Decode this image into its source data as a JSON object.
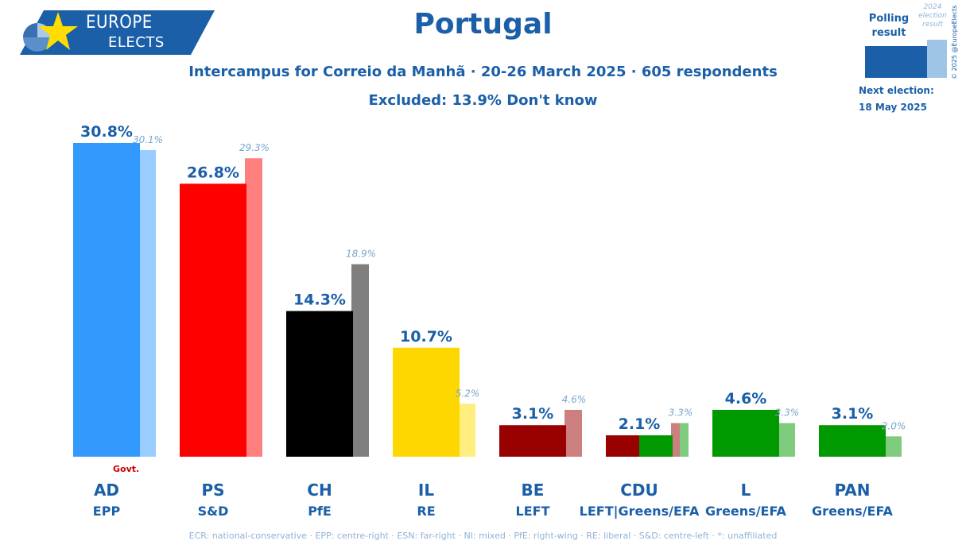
{
  "logo": {
    "line1": "EUROPE",
    "line2": "ELECTS"
  },
  "header": {
    "title": "Portugal",
    "subtitle": "Intercampus for Correio da Manhã · 20-26 March 2025 · 605 respondents",
    "excluded": "Excluded: 13.9% Don't know"
  },
  "legend": {
    "polling_result": "Polling result",
    "election_result": "2024 election result",
    "copyright": "© 2025 @EuropeElects",
    "next_election_label": "Next election:",
    "next_election_date": "18 May 2025",
    "poll_color": "#1a5fa8",
    "election_color": "#9ec5e6"
  },
  "chart_data": {
    "type": "bar",
    "categories": [
      "AD",
      "PS",
      "CH",
      "IL",
      "BE",
      "CDU",
      "L",
      "PAN"
    ],
    "groups": [
      "EPP",
      "S&D",
      "PfE",
      "RE",
      "LEFT",
      "LEFT|Greens/EFA",
      "Greens/EFA",
      "Greens/EFA"
    ],
    "series": [
      {
        "name": "Polling result",
        "values": [
          30.8,
          26.8,
          14.3,
          10.7,
          3.1,
          2.1,
          4.6,
          3.1
        ]
      },
      {
        "name": "2024 election result",
        "values": [
          30.1,
          29.3,
          18.9,
          5.2,
          4.6,
          3.3,
          3.3,
          2.0
        ]
      }
    ],
    "poll_labels": [
      "30.8%",
      "26.8%",
      "14.3%",
      "10.7%",
      "3.1%",
      "2.1%",
      "4.6%",
      "3.1%"
    ],
    "election_labels": [
      "30.1%",
      "29.3%",
      "18.9%",
      "5.2%",
      "4.6%",
      "3.3%",
      "3.3%",
      "2.0%"
    ],
    "annotation": "Govt.",
    "annotation_category": "AD",
    "colors": {
      "poll": [
        "#3399ff",
        "#ff0000",
        "#000000",
        "#ffd700",
        "#990000",
        "split:#990000|#009900",
        "#009900",
        "#009900"
      ],
      "election": [
        "#99ccff",
        "#ff7f7f",
        "#7f7f7f",
        "#ffee7f",
        "#cc7f7f",
        "split:#cc7f7f|#7fcc7f",
        "#7fcc7f",
        "#7fcc7f"
      ]
    },
    "ylim": [
      0,
      31
    ],
    "grid": false
  },
  "footer": "ECR: national-conservative · EPP: centre-right · ESN: far-right · NI: mixed · PfE: right-wing · RE: liberal · S&D: centre-left · *: unaffiliated"
}
